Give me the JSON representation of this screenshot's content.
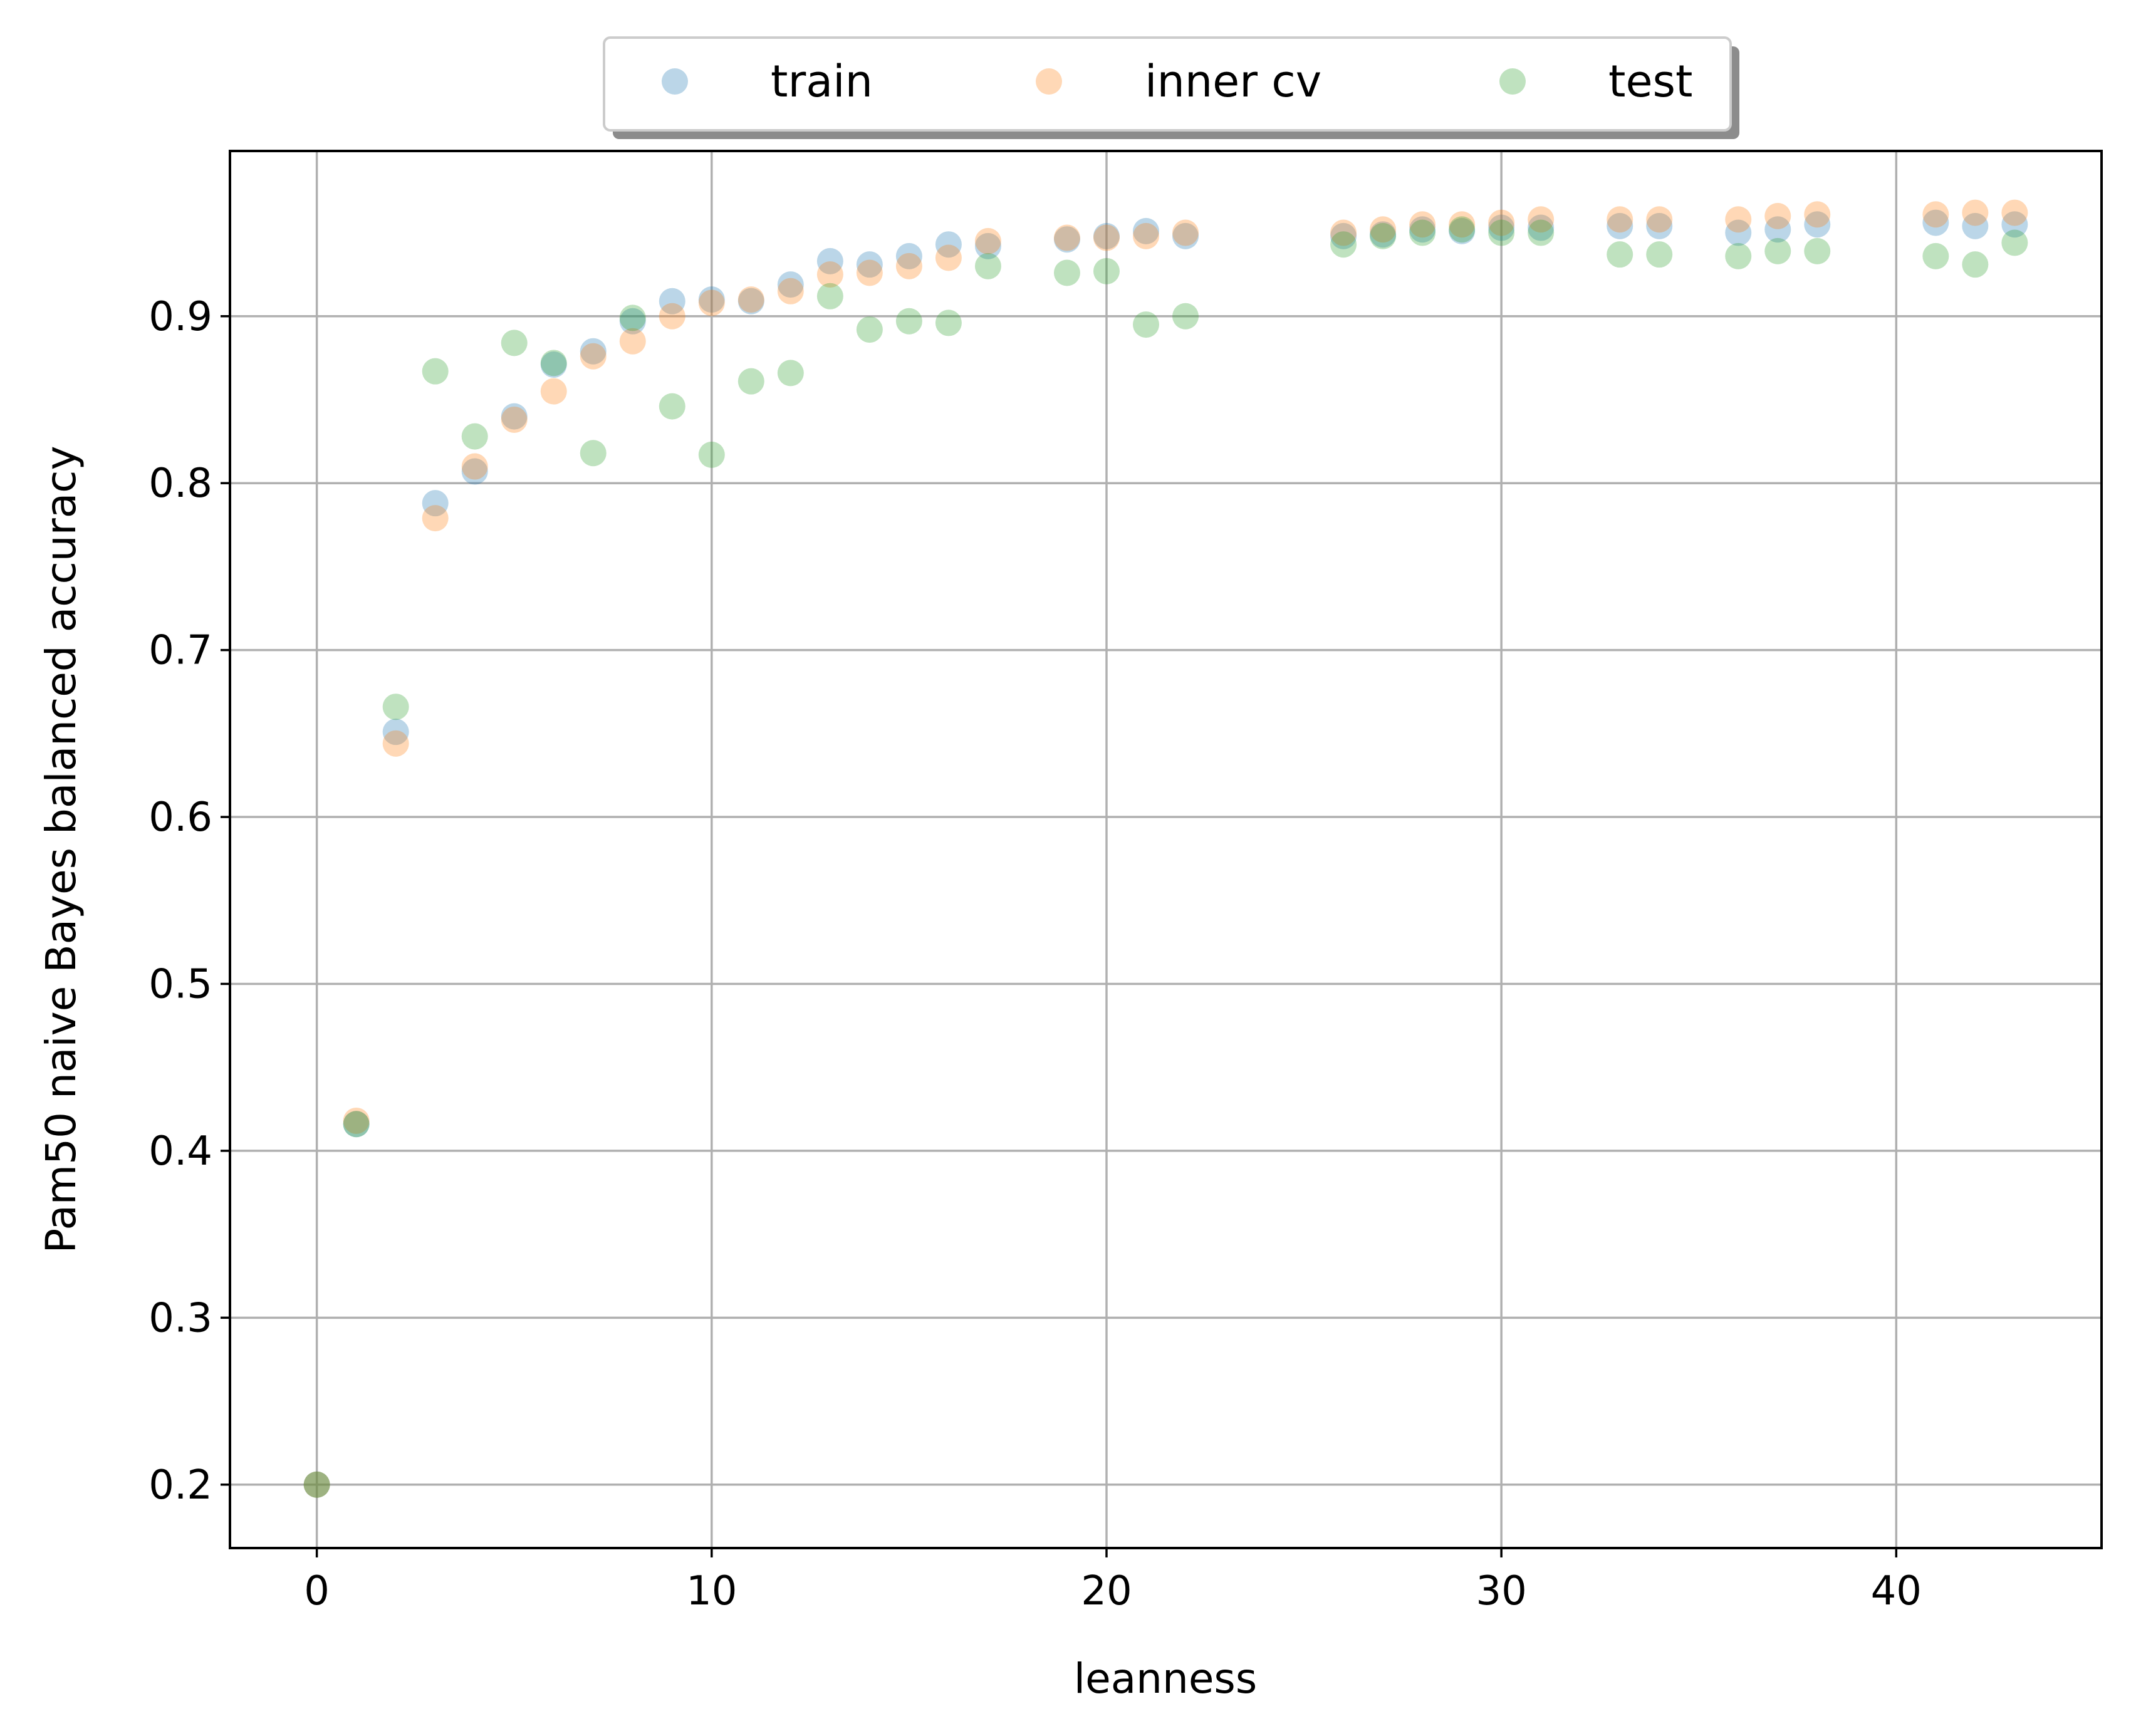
{
  "chart_data": {
    "type": "scatter",
    "xlabel": "leanness",
    "ylabel": "Pam50 naive Bayes balanced accuracy",
    "xlim": [
      -2.2,
      45.2
    ],
    "ylim": [
      0.162,
      0.999
    ],
    "xticks": [
      "0",
      "10",
      "20",
      "30",
      "40"
    ],
    "yticks": [
      "0.2",
      "0.3",
      "0.4",
      "0.5",
      "0.6",
      "0.7",
      "0.8",
      "0.9"
    ],
    "grid": true,
    "legend_placement": "top-center",
    "series": [
      {
        "name": "train",
        "color": "#1f77b4",
        "points": [
          [
            0,
            0.2
          ],
          [
            1,
            0.416
          ],
          [
            2,
            0.651
          ],
          [
            3,
            0.788
          ],
          [
            4,
            0.807
          ],
          [
            5,
            0.84
          ],
          [
            6,
            0.871
          ],
          [
            7,
            0.879
          ],
          [
            8,
            0.897
          ],
          [
            9,
            0.909
          ],
          [
            10,
            0.91
          ],
          [
            11,
            0.909
          ],
          [
            12,
            0.919
          ],
          [
            13,
            0.933
          ],
          [
            14,
            0.931
          ],
          [
            15,
            0.936
          ],
          [
            16,
            0.943
          ],
          [
            17,
            0.942
          ],
          [
            19,
            0.946
          ],
          [
            20,
            0.948
          ],
          [
            21,
            0.951
          ],
          [
            22,
            0.948
          ],
          [
            26,
            0.948
          ],
          [
            27,
            0.949
          ],
          [
            28,
            0.952
          ],
          [
            29,
            0.951
          ],
          [
            30,
            0.953
          ],
          [
            31,
            0.953
          ],
          [
            33,
            0.954
          ],
          [
            34,
            0.954
          ],
          [
            36,
            0.95
          ],
          [
            37,
            0.952
          ],
          [
            38,
            0.955
          ],
          [
            41,
            0.956
          ],
          [
            42,
            0.954
          ],
          [
            43,
            0.955
          ]
        ]
      },
      {
        "name": "inner cv",
        "color": "#ff7f0e",
        "points": [
          [
            0,
            0.2
          ],
          [
            1,
            0.418
          ],
          [
            2,
            0.644
          ],
          [
            3,
            0.779
          ],
          [
            4,
            0.81
          ],
          [
            5,
            0.838
          ],
          [
            6,
            0.855
          ],
          [
            7,
            0.876
          ],
          [
            8,
            0.885
          ],
          [
            9,
            0.9
          ],
          [
            10,
            0.908
          ],
          [
            11,
            0.91
          ],
          [
            12,
            0.915
          ],
          [
            13,
            0.925
          ],
          [
            14,
            0.926
          ],
          [
            15,
            0.93
          ],
          [
            16,
            0.935
          ],
          [
            17,
            0.945
          ],
          [
            19,
            0.947
          ],
          [
            20,
            0.947
          ],
          [
            21,
            0.948
          ],
          [
            22,
            0.95
          ],
          [
            26,
            0.95
          ],
          [
            27,
            0.952
          ],
          [
            28,
            0.955
          ],
          [
            29,
            0.955
          ],
          [
            30,
            0.956
          ],
          [
            31,
            0.958
          ],
          [
            33,
            0.958
          ],
          [
            34,
            0.958
          ],
          [
            36,
            0.958
          ],
          [
            37,
            0.96
          ],
          [
            38,
            0.961
          ],
          [
            41,
            0.961
          ],
          [
            42,
            0.962
          ],
          [
            43,
            0.962
          ]
        ]
      },
      {
        "name": "test",
        "color": "#2ca02c",
        "points": [
          [
            0,
            0.2
          ],
          [
            1,
            0.416
          ],
          [
            2,
            0.666
          ],
          [
            3,
            0.867
          ],
          [
            4,
            0.828
          ],
          [
            5,
            0.884
          ],
          [
            6,
            0.872
          ],
          [
            7,
            0.818
          ],
          [
            8,
            0.899
          ],
          [
            9,
            0.846
          ],
          [
            10,
            0.817
          ],
          [
            11,
            0.861
          ],
          [
            12,
            0.866
          ],
          [
            13,
            0.912
          ],
          [
            14,
            0.892
          ],
          [
            15,
            0.897
          ],
          [
            16,
            0.896
          ],
          [
            17,
            0.93
          ],
          [
            19,
            0.926
          ],
          [
            20,
            0.927
          ],
          [
            21,
            0.895
          ],
          [
            22,
            0.9
          ],
          [
            26,
            0.943
          ],
          [
            27,
            0.948
          ],
          [
            28,
            0.95
          ],
          [
            29,
            0.952
          ],
          [
            30,
            0.95
          ],
          [
            31,
            0.95
          ],
          [
            33,
            0.937
          ],
          [
            34,
            0.937
          ],
          [
            36,
            0.936
          ],
          [
            37,
            0.939
          ],
          [
            38,
            0.939
          ],
          [
            41,
            0.936
          ],
          [
            42,
            0.931
          ],
          [
            43,
            0.944
          ]
        ]
      }
    ]
  }
}
